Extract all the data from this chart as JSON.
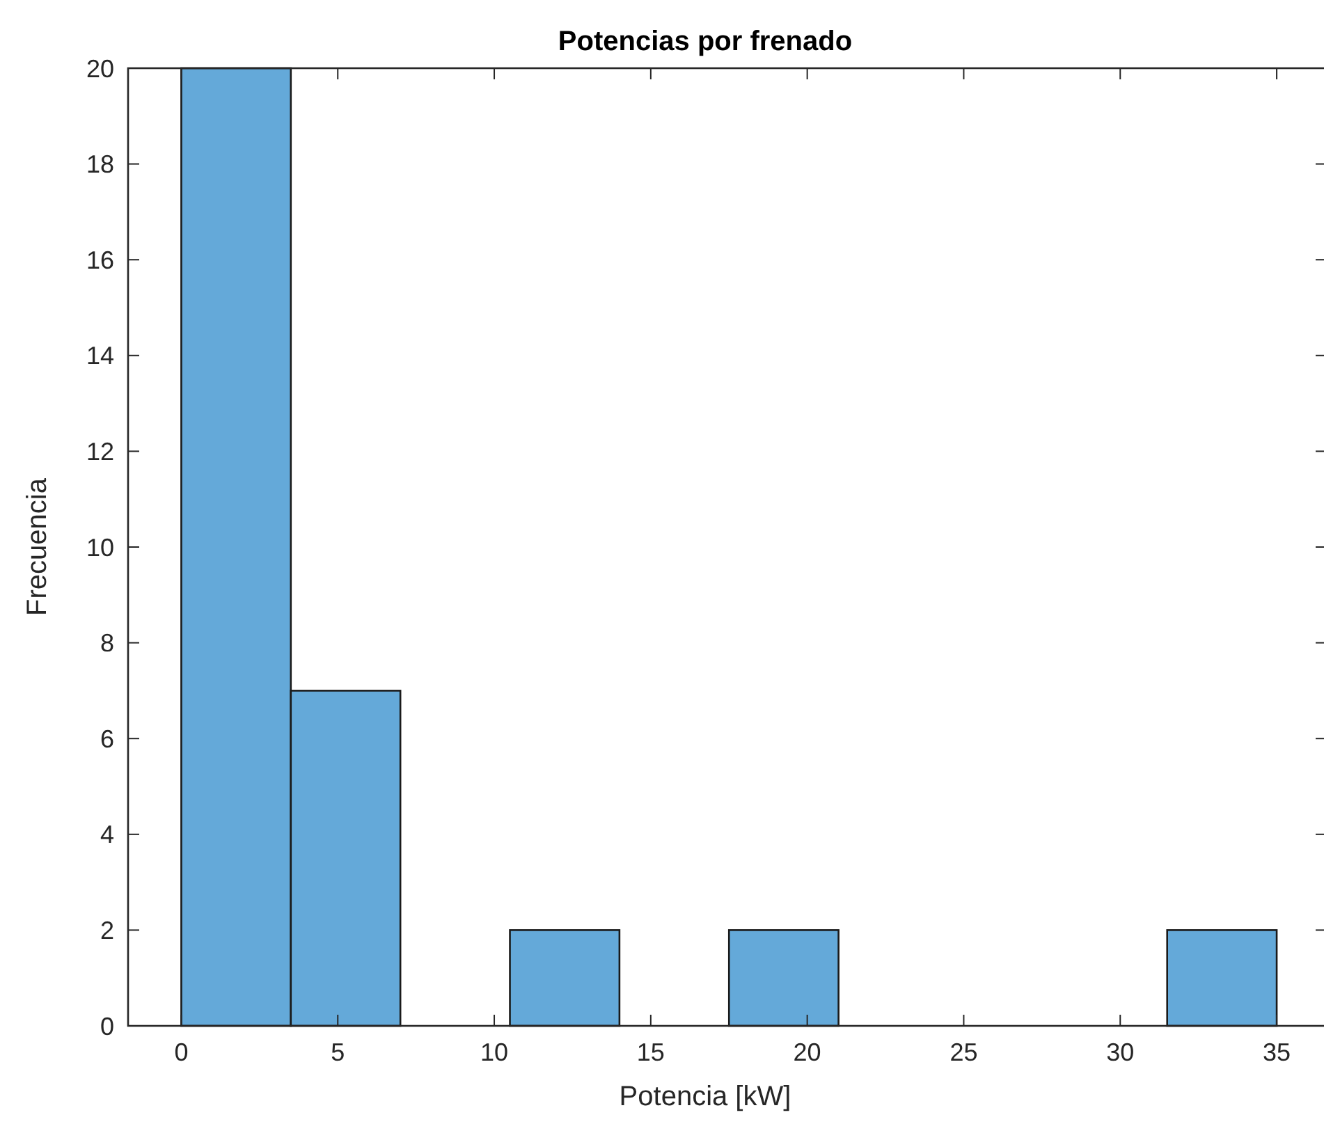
{
  "chart_data": {
    "type": "histogram",
    "title": "Potencias por frenado",
    "xlabel": "Potencia [kW]",
    "ylabel": "Frecuencia",
    "bins": [
      0,
      3.5,
      7,
      10.5,
      14,
      17.5,
      21,
      24.5,
      28,
      31.5,
      35
    ],
    "values": [
      20,
      7,
      0,
      2,
      0,
      2,
      0,
      0,
      0,
      2
    ],
    "color": "#64a9d9",
    "xlim": [
      -1.7,
      36.6
    ],
    "xticks": [
      0,
      5,
      10,
      15,
      20,
      25,
      30,
      35
    ],
    "ylim": [
      0,
      20
    ],
    "yticks": [
      0,
      2,
      4,
      6,
      8,
      10,
      12,
      14,
      16,
      18,
      20
    ],
    "grid": false
  }
}
